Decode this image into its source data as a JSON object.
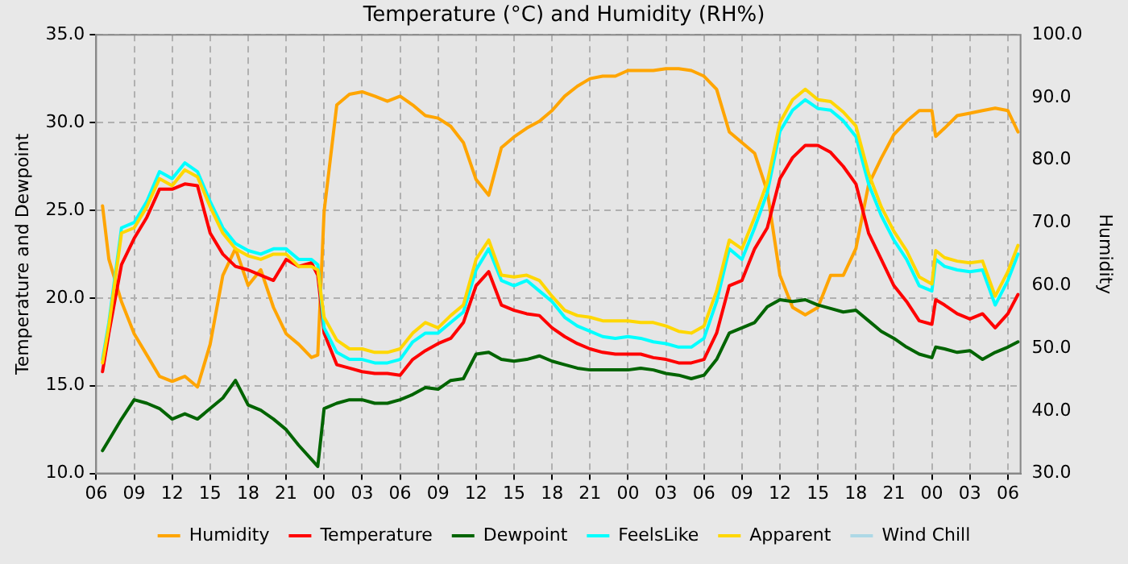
{
  "chart_data": {
    "type": "line",
    "title": "Temperature (°C) and Humidity (RH%)",
    "ylabel": "Temperature and Dewpoint",
    "y2label": "Humidity",
    "x": [
      6.5,
      7,
      8,
      9,
      10,
      11,
      12,
      13,
      14,
      15,
      16,
      17,
      18,
      19,
      20,
      21,
      22,
      23,
      23.5,
      24,
      25,
      26,
      27,
      28,
      29,
      30,
      31,
      32,
      33,
      34,
      35,
      36,
      37,
      38,
      39,
      40,
      41,
      42,
      43,
      44,
      45,
      46,
      47,
      48,
      49,
      50,
      51,
      52,
      53,
      54,
      55,
      56,
      57,
      58,
      59,
      60,
      61,
      62,
      63,
      64,
      65,
      66,
      67,
      68,
      69,
      70,
      71,
      72,
      72.3,
      73,
      74,
      75,
      76,
      77,
      78,
      78.8
    ],
    "xlim": [
      6,
      79
    ],
    "xticks": [
      {
        "value": 6,
        "label": "06"
      },
      {
        "value": 9,
        "label": "09"
      },
      {
        "value": 12,
        "label": "12"
      },
      {
        "value": 15,
        "label": "15"
      },
      {
        "value": 18,
        "label": "18"
      },
      {
        "value": 21,
        "label": "21"
      },
      {
        "value": 24,
        "label": "00"
      },
      {
        "value": 27,
        "label": "03"
      },
      {
        "value": 30,
        "label": "06"
      },
      {
        "value": 33,
        "label": "09"
      },
      {
        "value": 36,
        "label": "12"
      },
      {
        "value": 39,
        "label": "15"
      },
      {
        "value": 42,
        "label": "18"
      },
      {
        "value": 45,
        "label": "21"
      },
      {
        "value": 48,
        "label": "00"
      },
      {
        "value": 51,
        "label": "03"
      },
      {
        "value": 54,
        "label": "06"
      },
      {
        "value": 57,
        "label": "09"
      },
      {
        "value": 60,
        "label": "12"
      },
      {
        "value": 63,
        "label": "15"
      },
      {
        "value": 66,
        "label": "18"
      },
      {
        "value": 69,
        "label": "21"
      },
      {
        "value": 72,
        "label": "00"
      },
      {
        "value": 75,
        "label": "03"
      },
      {
        "value": 78,
        "label": "06"
      }
    ],
    "ylim": [
      10,
      35
    ],
    "yticks": [
      {
        "value": 10,
        "label": "10.0"
      },
      {
        "value": 15,
        "label": "15.0"
      },
      {
        "value": 20,
        "label": "20.0"
      },
      {
        "value": 25,
        "label": "25.0"
      },
      {
        "value": 30,
        "label": "30.0"
      },
      {
        "value": 35,
        "label": "35.0"
      }
    ],
    "y2lim": [
      30,
      100
    ],
    "y2ticks": [
      {
        "value": 30,
        "label": "30.0"
      },
      {
        "value": 40,
        "label": "40.0"
      },
      {
        "value": 50,
        "label": "50.0"
      },
      {
        "value": 60,
        "label": "60.0"
      },
      {
        "value": 70,
        "label": "70.0"
      },
      {
        "value": 80,
        "label": "80.0"
      },
      {
        "value": 90,
        "label": "90.0"
      },
      {
        "value": 100,
        "label": "100.0"
      }
    ],
    "grid": true,
    "legend": "bottom",
    "marker": "none",
    "line_style": "solid",
    "series": [
      {
        "name": "Humidity",
        "color": "#ffa500",
        "axis": "y2",
        "values": [
          72.7,
          64.2,
          57.4,
          52.3,
          48.9,
          45.5,
          44.7,
          45.5,
          43.8,
          50.6,
          61.6,
          65.9,
          60.0,
          62.5,
          56.5,
          52.3,
          50.6,
          48.5,
          48.9,
          71.8,
          88.8,
          90.5,
          90.9,
          90.2,
          89.4,
          90.2,
          88.8,
          87.1,
          86.7,
          85.4,
          82.8,
          76.9,
          74.4,
          82.0,
          83.7,
          85.1,
          86.2,
          87.9,
          90.2,
          91.8,
          93.0,
          93.4,
          93.4,
          94.3,
          94.3,
          94.3,
          94.6,
          94.6,
          94.3,
          93.4,
          91.3,
          84.5,
          82.8,
          81.1,
          75.0,
          61.6,
          56.5,
          55.3,
          56.5,
          61.6,
          61.6,
          65.9,
          76.1,
          80.3,
          84.1,
          86.2,
          87.9,
          87.9,
          83.8,
          85.1,
          87.1,
          87.5,
          87.9,
          88.3,
          87.9,
          84.5
        ]
      },
      {
        "name": "Temperature",
        "color": "#ff0000",
        "values": [
          15.8,
          18.0,
          21.9,
          23.4,
          24.6,
          26.2,
          26.2,
          26.5,
          26.4,
          23.7,
          22.5,
          21.8,
          21.6,
          21.3,
          21.0,
          22.2,
          21.8,
          22.0,
          21.3,
          18.0,
          16.2,
          16.0,
          15.8,
          15.7,
          15.7,
          15.6,
          16.5,
          17.0,
          17.4,
          17.7,
          18.6,
          20.7,
          21.5,
          19.6,
          19.3,
          19.1,
          19.0,
          18.3,
          17.8,
          17.4,
          17.1,
          16.9,
          16.8,
          16.8,
          16.8,
          16.6,
          16.5,
          16.3,
          16.3,
          16.5,
          18.0,
          20.7,
          21.0,
          22.8,
          24.0,
          26.8,
          28.0,
          28.7,
          28.7,
          28.3,
          27.5,
          26.5,
          23.7,
          22.2,
          20.7,
          19.8,
          18.7,
          18.5,
          19.9,
          19.6,
          19.1,
          18.8,
          19.1,
          18.3,
          19.1,
          20.2
        ]
      },
      {
        "name": "Dewpoint",
        "color": "#006400",
        "values": [
          11.3,
          11.9,
          13.1,
          14.2,
          14.0,
          13.7,
          13.1,
          13.4,
          13.1,
          13.7,
          14.3,
          15.3,
          13.9,
          13.6,
          13.1,
          12.5,
          11.6,
          10.8,
          10.4,
          13.7,
          14.0,
          14.2,
          14.2,
          14.0,
          14.0,
          14.2,
          14.5,
          14.9,
          14.8,
          15.3,
          15.4,
          16.8,
          16.9,
          16.5,
          16.4,
          16.5,
          16.7,
          16.4,
          16.2,
          16.0,
          15.9,
          15.9,
          15.9,
          15.9,
          16.0,
          15.9,
          15.7,
          15.6,
          15.4,
          15.6,
          16.5,
          18.0,
          18.3,
          18.6,
          19.5,
          19.9,
          19.8,
          19.9,
          19.6,
          19.4,
          19.2,
          19.3,
          18.7,
          18.1,
          17.7,
          17.2,
          16.8,
          16.6,
          17.2,
          17.1,
          16.9,
          17.0,
          16.5,
          16.9,
          17.2,
          17.5
        ]
      },
      {
        "name": "FeelsLike",
        "color": "#00ffff",
        "values": [
          16.5,
          18.6,
          24.0,
          24.3,
          25.5,
          27.2,
          26.8,
          27.7,
          27.2,
          25.5,
          24.0,
          23.1,
          22.7,
          22.5,
          22.8,
          22.8,
          22.2,
          22.2,
          21.9,
          18.3,
          16.9,
          16.5,
          16.5,
          16.3,
          16.3,
          16.5,
          17.5,
          18.0,
          18.0,
          18.6,
          19.2,
          21.6,
          22.8,
          21.0,
          20.7,
          21.0,
          20.4,
          19.8,
          18.9,
          18.4,
          18.1,
          17.8,
          17.7,
          17.8,
          17.7,
          17.5,
          17.4,
          17.2,
          17.2,
          17.7,
          19.8,
          22.8,
          22.2,
          24.0,
          26.0,
          29.5,
          30.7,
          31.3,
          30.8,
          30.7,
          30.1,
          29.2,
          26.5,
          24.7,
          23.3,
          22.2,
          20.7,
          20.4,
          22.2,
          21.8,
          21.6,
          21.5,
          21.6,
          19.6,
          21.0,
          22.5
        ]
      },
      {
        "name": "Apparent",
        "color": "#ffd700",
        "values": [
          16.3,
          18.4,
          23.7,
          24.0,
          25.2,
          26.8,
          26.4,
          27.3,
          26.9,
          25.2,
          23.7,
          22.8,
          22.4,
          22.2,
          22.5,
          22.5,
          21.8,
          21.8,
          21.6,
          18.9,
          17.6,
          17.1,
          17.1,
          16.9,
          16.9,
          17.1,
          18.0,
          18.6,
          18.3,
          19.0,
          19.6,
          22.2,
          23.3,
          21.3,
          21.2,
          21.3,
          21.0,
          20.1,
          19.3,
          19.0,
          18.9,
          18.7,
          18.7,
          18.7,
          18.6,
          18.6,
          18.4,
          18.1,
          18.0,
          18.4,
          20.4,
          23.3,
          22.8,
          24.6,
          26.6,
          30.0,
          31.3,
          31.9,
          31.3,
          31.2,
          30.6,
          29.8,
          27.1,
          25.2,
          23.8,
          22.7,
          21.2,
          20.8,
          22.7,
          22.3,
          22.1,
          22.0,
          22.1,
          20.1,
          21.5,
          23.0
        ]
      },
      {
        "name": "Wind Chill",
        "color": "#add8e6",
        "values": [
          null,
          null,
          null,
          null,
          null,
          null,
          null,
          null,
          null,
          null,
          null,
          null,
          null,
          null,
          null,
          null,
          null,
          null,
          null,
          null,
          null,
          null,
          null,
          null,
          null,
          null,
          null,
          null,
          null,
          null,
          null,
          null,
          null,
          null,
          null,
          null,
          null,
          null,
          null,
          null,
          null,
          null,
          null,
          null,
          null,
          null,
          null,
          null,
          null,
          null,
          null,
          null,
          null,
          null,
          null,
          null,
          null,
          null,
          null,
          null,
          null,
          null,
          null,
          null,
          null,
          null,
          null,
          null,
          null,
          null,
          null,
          null,
          null,
          null,
          null,
          null
        ]
      }
    ]
  }
}
